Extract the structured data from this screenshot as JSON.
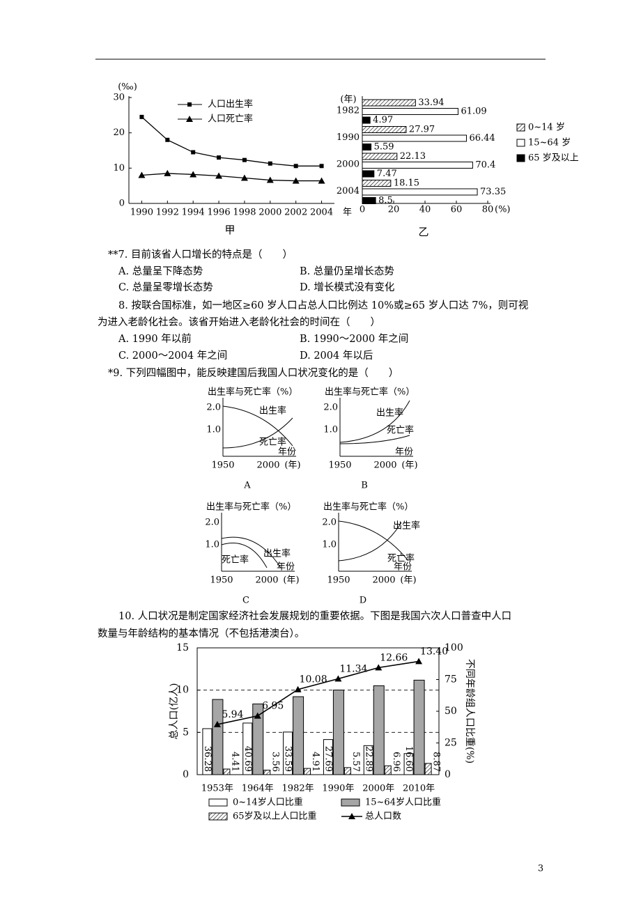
{
  "figure_jia": {
    "type": "line",
    "y_label": "(‰)",
    "x_unit": "年",
    "caption": "甲",
    "x": [
      1990,
      1992,
      1994,
      1996,
      1998,
      2000,
      2002,
      2004
    ],
    "xlim": [
      1989,
      2005
    ],
    "xticks": [
      1990,
      1992,
      1994,
      1996,
      1998,
      2000,
      2002,
      2004
    ],
    "ylim": [
      0,
      30
    ],
    "yticks": [
      0,
      10,
      20,
      30
    ],
    "series": [
      {
        "name": "人口出生率",
        "color": "#000000",
        "marker": "square",
        "values": [
          24.5,
          18,
          14.5,
          13,
          12.3,
          11.3,
          10.6,
          10.6
        ]
      },
      {
        "name": "人口死亡率",
        "color": "#000000",
        "marker": "triangle",
        "values": [
          8,
          8.5,
          8.2,
          7.8,
          7.2,
          6.6,
          6.4,
          6.4
        ]
      }
    ]
  },
  "figure_yi": {
    "type": "hbar",
    "y_label": "(年)",
    "x_unit": "(%)",
    "caption": "乙",
    "categories": [
      "1982",
      "1990",
      "2000",
      "2004"
    ],
    "xlim": [
      0,
      80
    ],
    "xticks": [
      0,
      20,
      40,
      60,
      80
    ],
    "series": [
      {
        "name": "0~14 岁",
        "pattern": "hatch",
        "values": [
          33.94,
          27.97,
          22.13,
          18.15
        ]
      },
      {
        "name": "15~64 岁",
        "color": "#ffffff",
        "values": [
          61.09,
          66.44,
          70.4,
          73.35
        ]
      },
      {
        "name": "65 岁及以上",
        "color": "#000000",
        "values": [
          4.97,
          5.59,
          7.47,
          8.5
        ]
      }
    ]
  },
  "question7": {
    "stem": "**7. 目前该省人口增长的特点是（　　）",
    "options": [
      "A. 总量呈下降态势",
      "B. 总量仍呈增长态势",
      "C. 总量呈零增长态势",
      "D. 增长模式没有变化"
    ]
  },
  "question8": {
    "stem": [
      "8. 按联合国标准，如一地区≥60 岁人口占总人口比例达 10%或≥65 岁人口达 7%，则可视",
      "为进入老龄化社会。该省开始进入老龄化社会的时间在（　　）"
    ],
    "options": [
      "A. 1990 年以前",
      "B. 1990～2000 年之间",
      "C. 2000～2004 年之间",
      "D. 2004 年以后"
    ]
  },
  "question9": {
    "stem": "*9. 下列四幅图中，能反映建国后我国人口状况变化的是（　　）",
    "figures": [
      {
        "label": "A",
        "y_label": "出生率与死亡率（%）",
        "y_ticks": [
          "2.0",
          "1.0"
        ],
        "x_ticks": [
          "1950",
          "2000"
        ],
        "x_unit": "(年)",
        "x_name": "年份",
        "curves": [
          "出生率",
          "死亡率"
        ]
      },
      {
        "label": "B",
        "y_label": "出生率与死亡率（%）",
        "y_ticks": [
          "2.0",
          "1.0"
        ],
        "x_ticks": [
          "1950",
          "2000"
        ],
        "x_unit": "(年)",
        "x_name": "年份",
        "curves": [
          "出生率",
          "死亡率"
        ]
      },
      {
        "label": "C",
        "y_label": "出生率与死亡率（%）",
        "y_ticks": [
          "2.0",
          "1.0"
        ],
        "x_ticks": [
          "1950",
          "2000"
        ],
        "x_unit": "(年)",
        "x_name": "年份",
        "curves": [
          "出生率",
          "死亡率"
        ]
      },
      {
        "label": "D",
        "y_label": "出生率与死亡率（%）",
        "y_ticks": [
          "2.0",
          "1.0"
        ],
        "x_ticks": [
          "1950",
          "2000"
        ],
        "x_unit": "(年)",
        "x_name": "年份",
        "curves": [
          "出生率",
          "死亡率"
        ]
      }
    ]
  },
  "question10": {
    "stem": [
      "10. 人口状况是制定国家经济社会发展规划的重要依据。下图是我国六次人口普查中人口",
      "数量与年龄结构的基本情况（不包括港澳台）。"
    ]
  },
  "figure_10": {
    "type": "bar-line",
    "y_label": "总人口(亿人)",
    "y2_label": "不同年龄组人口比重(%)",
    "categories": [
      "1953年",
      "1964年",
      "1982年",
      "1990年",
      "2000年",
      "2010年"
    ],
    "ylim": [
      0,
      15
    ],
    "yticks": [
      0,
      5,
      10,
      15
    ],
    "y2lim": [
      0,
      100
    ],
    "y2ticks": [
      0,
      25,
      50,
      75,
      100
    ],
    "grid": "dashed",
    "series": [
      {
        "name": "0~14岁人口比重",
        "axis": "y2",
        "kind": "bar",
        "color": "#ffffff",
        "values": [
          36.28,
          40.69,
          33.59,
          27.69,
          22.89,
          16.6
        ],
        "value_labels": [
          "36.28",
          "40.69",
          "33.59",
          "27.69",
          "22.89",
          "16.60"
        ]
      },
      {
        "name": "15~64岁人口比重",
        "axis": "y2",
        "kind": "bar",
        "color": "#a6a6a6",
        "values": [
          59.31,
          55.75,
          61.5,
          66.74,
          70.15,
          74.53
        ]
      },
      {
        "name": "65岁及以上人口比重",
        "axis": "y2",
        "kind": "bar",
        "pattern": "hatch",
        "values": [
          4.41,
          3.56,
          4.91,
          5.57,
          6.96,
          8.87
        ],
        "value_labels": [
          "4.41",
          "3.56",
          "4.91",
          "5.57",
          "6.96",
          "8.87"
        ]
      },
      {
        "name": "总人口数",
        "kind": "line",
        "color": "#000000",
        "values": [
          5.94,
          6.95,
          10.08,
          11.34,
          12.66,
          13.4
        ],
        "value_labels": [
          "5.94",
          "6.95",
          "10.08",
          "11.34",
          "12.66",
          "13.40"
        ]
      }
    ]
  },
  "page_number": "3"
}
